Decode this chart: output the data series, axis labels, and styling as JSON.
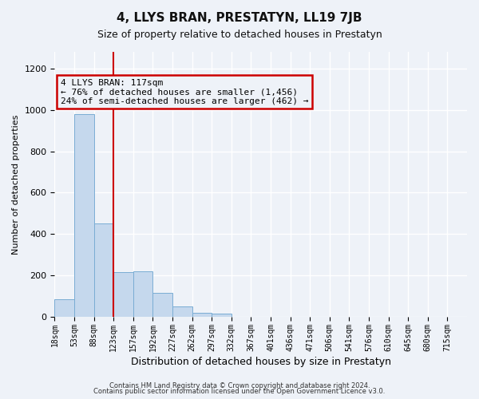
{
  "title": "4, LLYS BRAN, PRESTATYN, LL19 7JB",
  "subtitle": "Size of property relative to detached houses in Prestatyn",
  "xlabel": "Distribution of detached houses by size in Prestatyn",
  "ylabel": "Number of detached properties",
  "bar_labels": [
    "18sqm",
    "53sqm",
    "88sqm",
    "123sqm",
    "157sqm",
    "192sqm",
    "227sqm",
    "262sqm",
    "297sqm",
    "332sqm",
    "367sqm",
    "401sqm",
    "436sqm",
    "471sqm",
    "506sqm",
    "541sqm",
    "576sqm",
    "610sqm",
    "645sqm",
    "680sqm",
    "715sqm"
  ],
  "bar_heights": [
    85,
    980,
    450,
    215,
    220,
    115,
    50,
    20,
    15,
    0,
    0,
    0,
    0,
    0,
    0,
    0,
    0,
    0,
    0,
    0,
    0
  ],
  "bar_color": "#c5d8ed",
  "bar_edge_color": "#7aadd4",
  "vline_x": 3.0,
  "vline_color": "#cc0000",
  "annotation_title": "4 LLYS BRAN: 117sqm",
  "annotation_line1": "← 76% of detached houses are smaller (1,456)",
  "annotation_line2": "24% of semi-detached houses are larger (462) →",
  "annotation_box_color": "#cc0000",
  "ylim": [
    0,
    1280
  ],
  "yticks": [
    0,
    200,
    400,
    600,
    800,
    1000,
    1200
  ],
  "footer1": "Contains HM Land Registry data © Crown copyright and database right 2024.",
  "footer2": "Contains public sector information licensed under the Open Government Licence v3.0.",
  "background_color": "#eef2f8",
  "grid_color": "#ffffff"
}
